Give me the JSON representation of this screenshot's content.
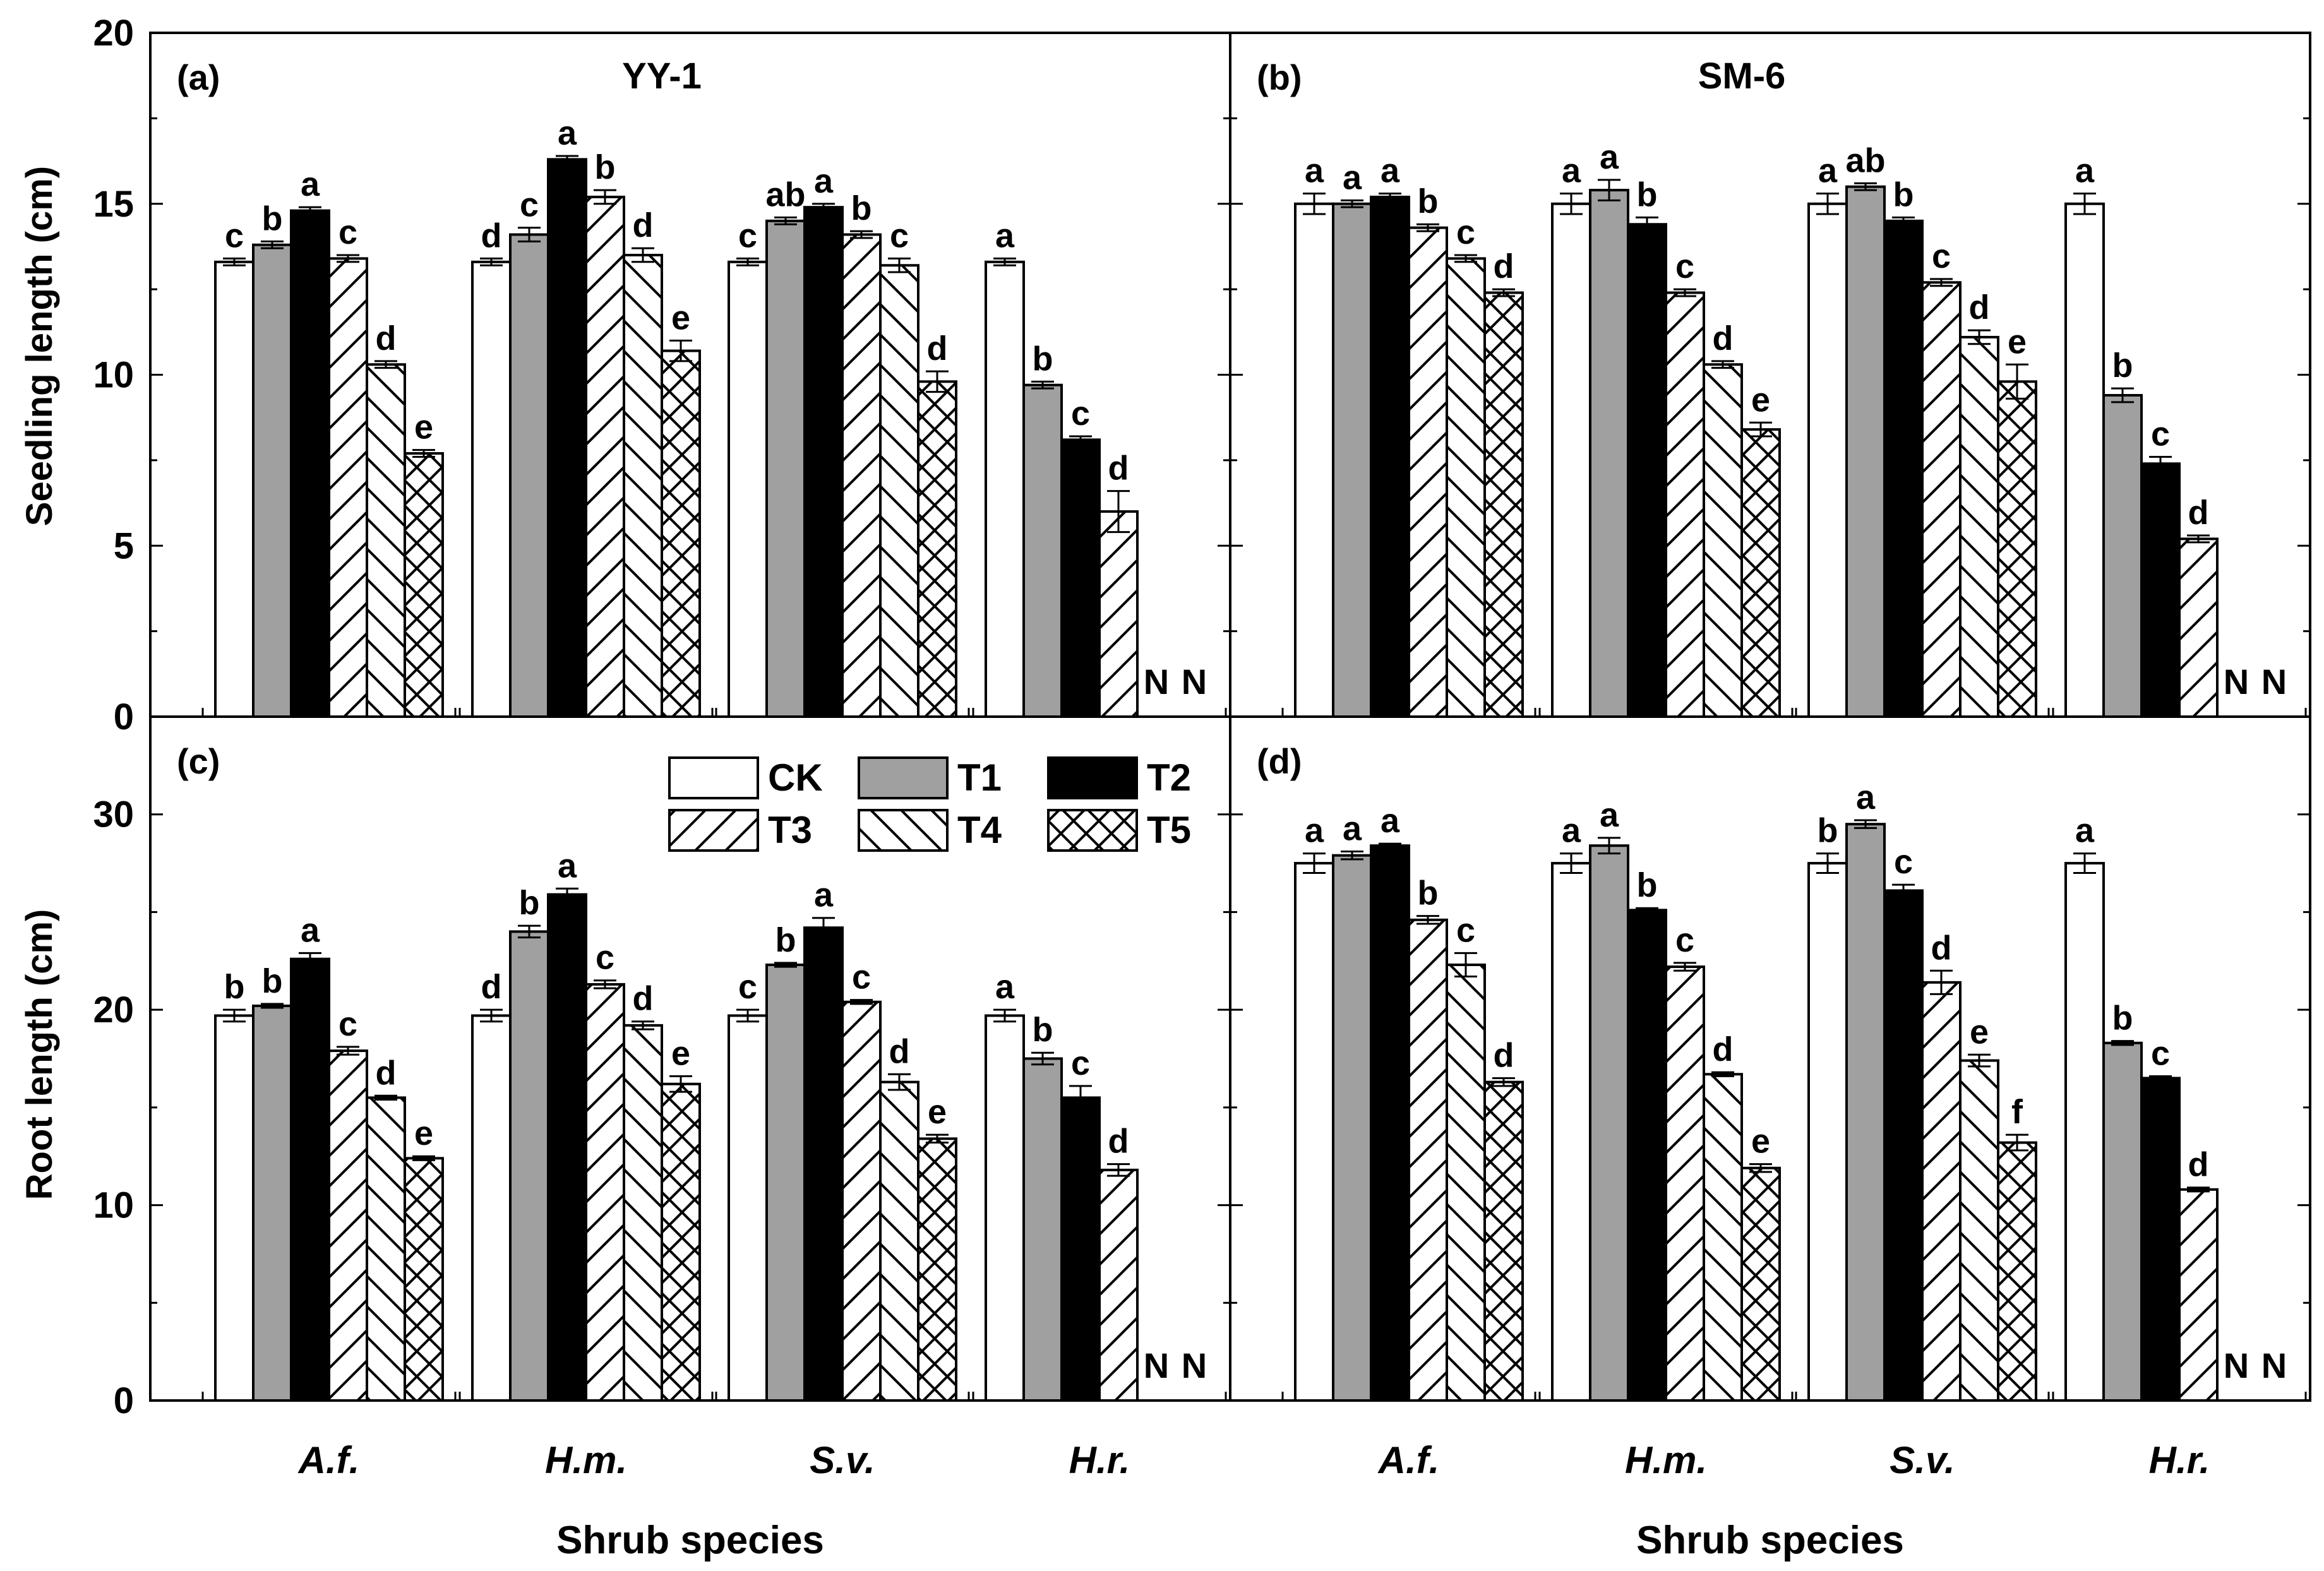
{
  "figure": {
    "xlabel": "Shrub species",
    "legend_position": "top-center of panel (c)"
  },
  "chart_data": [
    {
      "id": "a",
      "type": "bar",
      "panel_label": "(a)",
      "title": "YY-1",
      "ylabel": "Seedling length (cm)",
      "ylim": [
        0,
        20
      ],
      "yticks": [
        "0",
        "5",
        "10",
        "15",
        "20"
      ],
      "xlabel": "Shrub species",
      "categories": [
        "A.f.",
        "H.m.",
        "S.v.",
        "H.r."
      ],
      "series": [
        {
          "name": "CK",
          "values": [
            13.3,
            13.3,
            13.3,
            13.3
          ],
          "err": [
            0.1,
            0.1,
            0.1,
            0.1
          ],
          "letters": [
            "c",
            "d",
            "c",
            "a"
          ]
        },
        {
          "name": "T1",
          "values": [
            13.8,
            14.1,
            14.5,
            9.7
          ],
          "err": [
            0.1,
            0.2,
            0.1,
            0.1
          ],
          "letters": [
            "b",
            "c",
            "ab",
            "b"
          ]
        },
        {
          "name": "T2",
          "values": [
            14.8,
            16.3,
            14.9,
            8.1
          ],
          "err": [
            0.1,
            0.1,
            0.1,
            0.1
          ],
          "letters": [
            "a",
            "a",
            "a",
            "c"
          ]
        },
        {
          "name": "T3",
          "values": [
            13.4,
            15.2,
            14.1,
            6.0
          ],
          "err": [
            0.1,
            0.2,
            0.1,
            0.6
          ],
          "letters": [
            "c",
            "b",
            "b",
            "d"
          ]
        },
        {
          "name": "T4",
          "values": [
            10.3,
            13.5,
            13.2,
            null
          ],
          "err": [
            0.1,
            0.2,
            0.2,
            0
          ],
          "letters": [
            "d",
            "d",
            "c",
            "N"
          ]
        },
        {
          "name": "T5",
          "values": [
            7.7,
            10.7,
            9.8,
            null
          ],
          "err": [
            0.1,
            0.3,
            0.3,
            0
          ],
          "letters": [
            "e",
            "e",
            "d",
            "N"
          ]
        }
      ]
    },
    {
      "id": "b",
      "type": "bar",
      "panel_label": "(b)",
      "title": "SM-6",
      "ylabel": "",
      "ylim": [
        0,
        20
      ],
      "yticks": [],
      "xlabel": "Shrub species",
      "categories": [
        "A.f.",
        "H.m.",
        "S.v.",
        "H.r."
      ],
      "series": [
        {
          "name": "CK",
          "values": [
            15.0,
            15.0,
            15.0,
            15.0
          ],
          "err": [
            0.3,
            0.3,
            0.3,
            0.3
          ],
          "letters": [
            "a",
            "a",
            "a",
            "a"
          ]
        },
        {
          "name": "T1",
          "values": [
            15.0,
            15.4,
            15.5,
            9.4
          ],
          "err": [
            0.1,
            0.3,
            0.1,
            0.2
          ],
          "letters": [
            "a",
            "a",
            "ab",
            "b"
          ]
        },
        {
          "name": "T2",
          "values": [
            15.2,
            14.4,
            14.5,
            7.4
          ],
          "err": [
            0.1,
            0.2,
            0.1,
            0.2
          ],
          "letters": [
            "a",
            "b",
            "b",
            "c"
          ]
        },
        {
          "name": "T3",
          "values": [
            14.3,
            12.4,
            12.7,
            5.2
          ],
          "err": [
            0.1,
            0.1,
            0.1,
            0.1
          ],
          "letters": [
            "b",
            "c",
            "c",
            "d"
          ]
        },
        {
          "name": "T4",
          "values": [
            13.4,
            10.3,
            11.1,
            null
          ],
          "err": [
            0.1,
            0.1,
            0.2,
            0
          ],
          "letters": [
            "c",
            "d",
            "d",
            "N"
          ]
        },
        {
          "name": "T5",
          "values": [
            12.4,
            8.4,
            9.8,
            null
          ],
          "err": [
            0.1,
            0.2,
            0.5,
            0
          ],
          "letters": [
            "d",
            "e",
            "e",
            "N"
          ]
        }
      ]
    },
    {
      "id": "c",
      "type": "bar",
      "panel_label": "(c)",
      "title": "",
      "ylabel": "Root length (cm)",
      "ylim": [
        0,
        35
      ],
      "yticks": [
        "0",
        "10",
        "20",
        "30"
      ],
      "xlabel": "Shrub species",
      "categories": [
        "A.f.",
        "H.m.",
        "S.v.",
        "H.r."
      ],
      "series": [
        {
          "name": "CK",
          "values": [
            19.7,
            19.7,
            19.7,
            19.7
          ],
          "err": [
            0.3,
            0.3,
            0.3,
            0.3
          ],
          "letters": [
            "b",
            "d",
            "c",
            "a"
          ]
        },
        {
          "name": "T1",
          "values": [
            20.2,
            24.0,
            22.3,
            17.5
          ],
          "err": [
            0.1,
            0.3,
            0.1,
            0.3
          ],
          "letters": [
            "b",
            "b",
            "b",
            "b"
          ]
        },
        {
          "name": "T2",
          "values": [
            22.6,
            25.9,
            24.2,
            15.5
          ],
          "err": [
            0.3,
            0.3,
            0.5,
            0.6
          ],
          "letters": [
            "a",
            "a",
            "a",
            "c"
          ]
        },
        {
          "name": "T3",
          "values": [
            17.9,
            21.3,
            20.4,
            11.8
          ],
          "err": [
            0.2,
            0.2,
            0.1,
            0.3
          ],
          "letters": [
            "c",
            "c",
            "c",
            "d"
          ]
        },
        {
          "name": "T4",
          "values": [
            15.5,
            19.2,
            16.3,
            null
          ],
          "err": [
            0.1,
            0.2,
            0.4,
            0
          ],
          "letters": [
            "d",
            "d",
            "d",
            "N"
          ]
        },
        {
          "name": "T5",
          "values": [
            12.4,
            16.2,
            13.4,
            null
          ],
          "err": [
            0.1,
            0.4,
            0.2,
            0
          ],
          "letters": [
            "e",
            "e",
            "e",
            "N"
          ]
        }
      ]
    },
    {
      "id": "d",
      "type": "bar",
      "panel_label": "(d)",
      "title": "",
      "ylabel": "",
      "ylim": [
        0,
        35
      ],
      "yticks": [],
      "xlabel": "Shrub species",
      "categories": [
        "A.f.",
        "H.m.",
        "S.v.",
        "H.r."
      ],
      "series": [
        {
          "name": "CK",
          "values": [
            27.5,
            27.5,
            27.5,
            27.5
          ],
          "err": [
            0.5,
            0.5,
            0.5,
            0.5
          ],
          "letters": [
            "a",
            "a",
            "b",
            "a"
          ]
        },
        {
          "name": "T1",
          "values": [
            27.9,
            28.4,
            29.5,
            18.3
          ],
          "err": [
            0.2,
            0.4,
            0.2,
            0.1
          ],
          "letters": [
            "a",
            "a",
            "a",
            "b"
          ]
        },
        {
          "name": "T2",
          "values": [
            28.4,
            25.1,
            26.1,
            16.5
          ],
          "err": [
            0.1,
            0.1,
            0.3,
            0.1
          ],
          "letters": [
            "a",
            "b",
            "c",
            "c"
          ]
        },
        {
          "name": "T3",
          "values": [
            24.6,
            22.2,
            21.4,
            10.8
          ],
          "err": [
            0.2,
            0.2,
            0.6,
            0.1
          ],
          "letters": [
            "b",
            "c",
            "d",
            "d"
          ]
        },
        {
          "name": "T4",
          "values": [
            22.3,
            16.7,
            17.4,
            null
          ],
          "err": [
            0.6,
            0.1,
            0.3,
            0
          ],
          "letters": [
            "c",
            "d",
            "e",
            "N"
          ]
        },
        {
          "name": "T5",
          "values": [
            16.3,
            11.9,
            13.2,
            null
          ],
          "err": [
            0.2,
            0.2,
            0.4,
            0
          ],
          "letters": [
            "d",
            "e",
            "f",
            "N"
          ]
        }
      ]
    }
  ]
}
